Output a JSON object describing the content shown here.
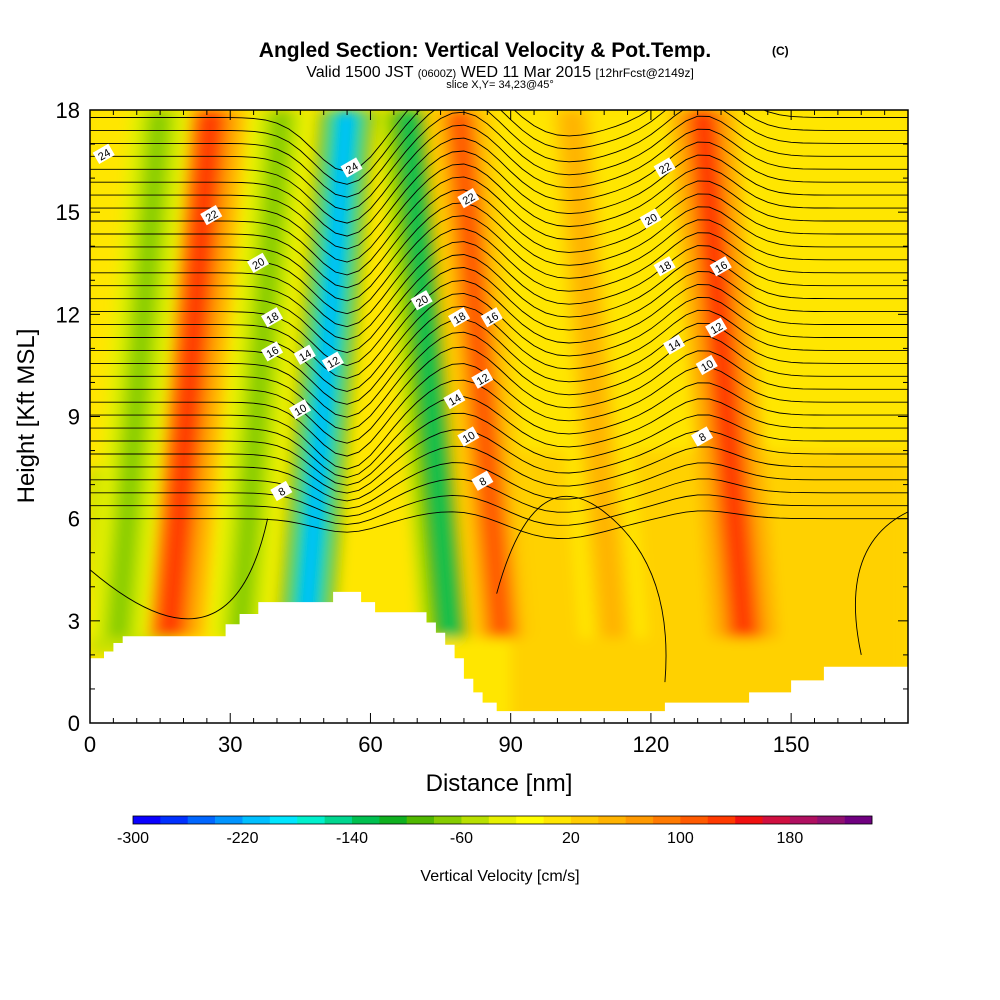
{
  "chart_data": {
    "type": "heatmap",
    "title": "Angled Section: Vertical Velocity & Pot.Temp.",
    "title_unit": "(C)",
    "subtitle_parts": [
      "Valid 1500 JST",
      "(0600Z)",
      "WED 11 Mar 2015",
      "[12hrFcst@2149z]"
    ],
    "slice_label": "slice X,Y= 34,23@45°",
    "xlabel": "Distance [nm]",
    "ylabel": "Height [Kft MSL]",
    "xlim": [
      0,
      175
    ],
    "ylim": [
      0,
      18
    ],
    "x_ticks": [
      0,
      30,
      60,
      90,
      120,
      150
    ],
    "y_ticks": [
      0,
      3,
      6,
      9,
      12,
      15,
      18
    ],
    "colorbar": {
      "label": "Vertical Velocity [cm/s]",
      "min": -300,
      "max": 240,
      "step": 20,
      "tick_values": [
        -300,
        -220,
        -140,
        -60,
        20,
        100,
        180
      ],
      "colors": [
        "#0a00ff",
        "#0030ff",
        "#0066ff",
        "#0094ff",
        "#00bfff",
        "#00e6ff",
        "#00f0cc",
        "#00d68f",
        "#00c050",
        "#10b020",
        "#50b800",
        "#86cc00",
        "#b8e000",
        "#e6f000",
        "#ffff00",
        "#ffe600",
        "#ffcc00",
        "#ffb300",
        "#ff9900",
        "#ff7a00",
        "#ff5a00",
        "#ff3a00",
        "#f01010",
        "#d01040",
        "#b01060",
        "#901070",
        "#700080"
      ]
    },
    "vertical_velocity_bands": [
      {
        "x_center": 26,
        "sign": "up",
        "peak": 120
      },
      {
        "x_center": 15,
        "sign": "down",
        "peak": -80
      },
      {
        "x_center": 41,
        "sign": "down",
        "peak": -80
      },
      {
        "x_center": 55,
        "sign": "down",
        "peak": -220
      },
      {
        "x_center": 68,
        "sign": "down",
        "peak": -140
      },
      {
        "x_center": 79,
        "sign": "up",
        "peak": 110
      },
      {
        "x_center": 103,
        "sign": "up",
        "peak": 40
      },
      {
        "x_center": 131,
        "sign": "up",
        "peak": 120
      }
    ],
    "theta_contours_c": [
      8,
      10,
      12,
      14,
      16,
      18,
      20,
      22,
      24
    ],
    "contour_labels": [
      {
        "text": "24",
        "x": 3,
        "y": 16.7
      },
      {
        "text": "22",
        "x": 26,
        "y": 14.9
      },
      {
        "text": "20",
        "x": 36,
        "y": 13.5
      },
      {
        "text": "18",
        "x": 39,
        "y": 11.9
      },
      {
        "text": "16",
        "x": 39,
        "y": 10.9
      },
      {
        "text": "14",
        "x": 46,
        "y": 10.8
      },
      {
        "text": "12",
        "x": 52,
        "y": 10.6
      },
      {
        "text": "10",
        "x": 45,
        "y": 9.2
      },
      {
        "text": "8",
        "x": 41,
        "y": 6.8
      },
      {
        "text": "24",
        "x": 56,
        "y": 16.3
      },
      {
        "text": "22",
        "x": 81,
        "y": 15.4
      },
      {
        "text": "20",
        "x": 71,
        "y": 12.4
      },
      {
        "text": "18",
        "x": 79,
        "y": 11.9
      },
      {
        "text": "16",
        "x": 86,
        "y": 11.9
      },
      {
        "text": "14",
        "x": 78,
        "y": 9.5
      },
      {
        "text": "12",
        "x": 84,
        "y": 10.1
      },
      {
        "text": "10",
        "x": 81,
        "y": 8.4
      },
      {
        "text": "8",
        "x": 84,
        "y": 7.1
      },
      {
        "text": "22",
        "x": 123,
        "y": 16.3
      },
      {
        "text": "20",
        "x": 120,
        "y": 14.8
      },
      {
        "text": "18",
        "x": 123,
        "y": 13.4
      },
      {
        "text": "16",
        "x": 135,
        "y": 13.4
      },
      {
        "text": "14",
        "x": 125,
        "y": 11.1
      },
      {
        "text": "12",
        "x": 134,
        "y": 11.6
      },
      {
        "text": "10",
        "x": 132,
        "y": 10.5
      },
      {
        "text": "8",
        "x": 131,
        "y": 8.4
      }
    ],
    "terrain": [
      [
        0,
        1.9
      ],
      [
        3,
        1.9
      ],
      [
        3,
        2.1
      ],
      [
        5,
        2.1
      ],
      [
        5,
        2.35
      ],
      [
        7,
        2.35
      ],
      [
        7,
        2.55
      ],
      [
        29,
        2.55
      ],
      [
        29,
        2.9
      ],
      [
        32,
        2.9
      ],
      [
        32,
        3.2
      ],
      [
        36,
        3.2
      ],
      [
        36,
        3.55
      ],
      [
        52,
        3.55
      ],
      [
        52,
        3.85
      ],
      [
        58,
        3.85
      ],
      [
        58,
        3.55
      ],
      [
        61,
        3.55
      ],
      [
        61,
        3.25
      ],
      [
        72,
        3.25
      ],
      [
        72,
        2.95
      ],
      [
        74,
        2.95
      ],
      [
        74,
        2.65
      ],
      [
        76,
        2.65
      ],
      [
        76,
        2.3
      ],
      [
        78,
        2.3
      ],
      [
        78,
        1.9
      ],
      [
        80,
        1.9
      ],
      [
        80,
        1.3
      ],
      [
        82,
        1.3
      ],
      [
        82,
        0.9
      ],
      [
        84,
        0.9
      ],
      [
        84,
        0.6
      ],
      [
        87,
        0.6
      ],
      [
        87,
        0.35
      ],
      [
        123,
        0.35
      ],
      [
        123,
        0.6
      ],
      [
        141,
        0.6
      ],
      [
        141,
        0.9
      ],
      [
        150,
        0.9
      ],
      [
        150,
        1.25
      ],
      [
        157,
        1.25
      ],
      [
        157,
        1.65
      ],
      [
        175,
        1.65
      ],
      [
        175,
        0
      ],
      [
        0,
        0
      ]
    ]
  }
}
